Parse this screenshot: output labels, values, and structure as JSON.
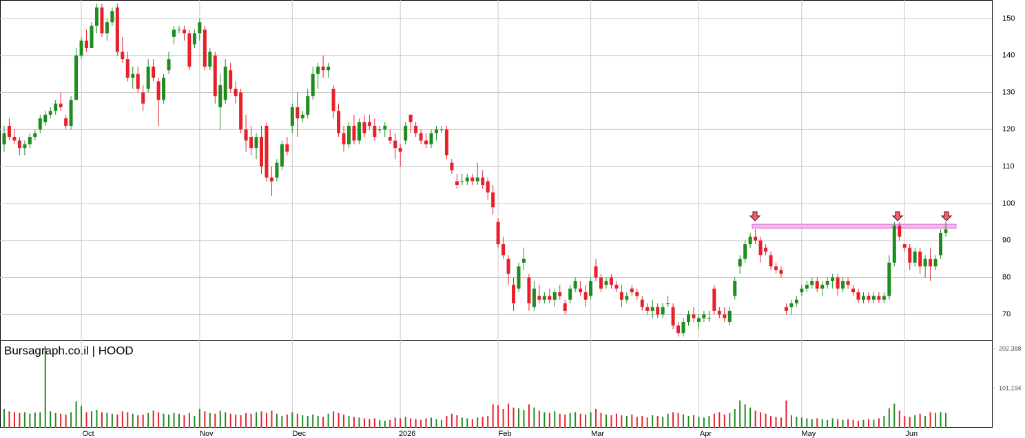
{
  "chart_data": {
    "type": "candlestick",
    "title": "Bursagraph.co.il | HOOD",
    "ylim": [
      63,
      155
    ],
    "yticks": [
      70,
      80,
      90,
      100,
      110,
      120,
      130,
      140,
      150
    ],
    "volume_ylim": [
      0,
      225000
    ],
    "volume_ticks": [
      {
        "value": 101194,
        "label": "101,194"
      },
      {
        "value": 202388,
        "label": "202,388"
      }
    ],
    "xticks": [
      {
        "value": 15,
        "label": "Oct"
      },
      {
        "value": 38,
        "label": "Nov"
      },
      {
        "value": 56,
        "label": "Dec"
      },
      {
        "value": 77,
        "label": "2026"
      },
      {
        "value": 96,
        "label": "Feb"
      },
      {
        "value": 114,
        "label": "Mar"
      },
      {
        "value": 135,
        "label": "Apr"
      },
      {
        "value": 155,
        "label": "May"
      },
      {
        "value": 175,
        "label": "Jun"
      }
    ],
    "grid": true,
    "up_color": "#1e8c1e",
    "down_color": "#e8202a",
    "resistance": {
      "low": 93.3,
      "high": 94.4,
      "color": "#f7b6f0"
    },
    "candles": [
      [
        116,
        121,
        114,
        119
      ],
      [
        121,
        123,
        117,
        118
      ],
      [
        118,
        120,
        116,
        117
      ],
      [
        117,
        118,
        113,
        115
      ],
      [
        115,
        117,
        113,
        116
      ],
      [
        116,
        119,
        115,
        118
      ],
      [
        118,
        120,
        117,
        119
      ],
      [
        120,
        124,
        119,
        123
      ],
      [
        122,
        125,
        121,
        124
      ],
      [
        124,
        126,
        123,
        125
      ],
      [
        125,
        128,
        124,
        127
      ],
      [
        127,
        130,
        125,
        126
      ],
      [
        123,
        124,
        120,
        121
      ],
      [
        121,
        129,
        120,
        128
      ],
      [
        128,
        142,
        128,
        140
      ],
      [
        140,
        145,
        139,
        144
      ],
      [
        144,
        147,
        141,
        142
      ],
      [
        142,
        149,
        142,
        148
      ],
      [
        148,
        154,
        146,
        153
      ],
      [
        153,
        154,
        145,
        146
      ],
      [
        146,
        150,
        144,
        149
      ],
      [
        149,
        153,
        148,
        152
      ],
      [
        153,
        154,
        140,
        141
      ],
      [
        141,
        145,
        138,
        139
      ],
      [
        139,
        141,
        133,
        134
      ],
      [
        134,
        137,
        131,
        135
      ],
      [
        135,
        137,
        130,
        131
      ],
      [
        130,
        132,
        125,
        127
      ],
      [
        131,
        139,
        130,
        137
      ],
      [
        137,
        139,
        133,
        134
      ],
      [
        133,
        134,
        121,
        128
      ],
      [
        128,
        135,
        127,
        134
      ],
      [
        136,
        141,
        135,
        139
      ],
      [
        145,
        148,
        143,
        147
      ],
      [
        147,
        148,
        146,
        147
      ],
      [
        147,
        148,
        144,
        146
      ],
      [
        146,
        147,
        136,
        137
      ],
      [
        143,
        147,
        142,
        146
      ],
      [
        146,
        150,
        144,
        149
      ],
      [
        147,
        148,
        136,
        137
      ],
      [
        137,
        142,
        136,
        141
      ],
      [
        140,
        141,
        127,
        129
      ],
      [
        126,
        135,
        120,
        132
      ],
      [
        128,
        139,
        127,
        137
      ],
      [
        136,
        138,
        130,
        131
      ],
      [
        131,
        133,
        127,
        129
      ],
      [
        130,
        131,
        119,
        120
      ],
      [
        120,
        124,
        114,
        117
      ],
      [
        118,
        121,
        113,
        115
      ],
      [
        115,
        119,
        112,
        118
      ],
      [
        118,
        121,
        108,
        110
      ],
      [
        121,
        122,
        106,
        107
      ],
      [
        107,
        110,
        102,
        106
      ],
      [
        107,
        112,
        106,
        111
      ],
      [
        110,
        117,
        109,
        116
      ],
      [
        116,
        118,
        113,
        114
      ],
      [
        121,
        127,
        119,
        126
      ],
      [
        126,
        130,
        118,
        123
      ],
      [
        123,
        125,
        122,
        124
      ],
      [
        124,
        131,
        123,
        129
      ],
      [
        129,
        137,
        128,
        135
      ],
      [
        135,
        138,
        131,
        137
      ],
      [
        137,
        140,
        134,
        136
      ],
      [
        136,
        138,
        134,
        137
      ],
      [
        131,
        132,
        123,
        125
      ],
      [
        125,
        127,
        118,
        119
      ],
      [
        119,
        121,
        114,
        116
      ],
      [
        116,
        122,
        115,
        121
      ],
      [
        121,
        124,
        116,
        117
      ],
      [
        117,
        123,
        116,
        122
      ],
      [
        122,
        124,
        118,
        119
      ],
      [
        122,
        124,
        120,
        121
      ],
      [
        121,
        123,
        117,
        118
      ],
      [
        120,
        121,
        119,
        120
      ],
      [
        120,
        122,
        118,
        121
      ],
      [
        118,
        120,
        116,
        117
      ],
      [
        117,
        119,
        112,
        115
      ],
      [
        115,
        116,
        110,
        114
      ],
      [
        117,
        122,
        116,
        121
      ],
      [
        124,
        124,
        119,
        122
      ],
      [
        121,
        122,
        118,
        119
      ],
      [
        119,
        120,
        116,
        117
      ],
      [
        117,
        119,
        115,
        116
      ],
      [
        116,
        120,
        115,
        119
      ],
      [
        119,
        121,
        117,
        120
      ],
      [
        120,
        121,
        119,
        120
      ],
      [
        120,
        121,
        112,
        113
      ],
      [
        111,
        112,
        108,
        109
      ],
      [
        106,
        108,
        104,
        105
      ],
      [
        106,
        108,
        105,
        106
      ],
      [
        106,
        108,
        105,
        107
      ],
      [
        107,
        108,
        105,
        106
      ],
      [
        106,
        111,
        105,
        107
      ],
      [
        107,
        109,
        104,
        105
      ],
      [
        106,
        107,
        101,
        103
      ],
      [
        103,
        105,
        97,
        99
      ],
      [
        95,
        96,
        88,
        89
      ],
      [
        89,
        91,
        85,
        86
      ],
      [
        85,
        86,
        78,
        81
      ],
      [
        78,
        80,
        71,
        73
      ],
      [
        77,
        84,
        76,
        83
      ],
      [
        84,
        88,
        82,
        85
      ],
      [
        80,
        81,
        71,
        73
      ],
      [
        72,
        79,
        71,
        77
      ],
      [
        75,
        78,
        73,
        74
      ],
      [
        74,
        76,
        73,
        75
      ],
      [
        75,
        77,
        73,
        74
      ],
      [
        74,
        77,
        72,
        76
      ],
      [
        76,
        78,
        74,
        75
      ],
      [
        73,
        74,
        70,
        71
      ],
      [
        74,
        78,
        73,
        77
      ],
      [
        77,
        80,
        76,
        79
      ],
      [
        77,
        79,
        75,
        76
      ],
      [
        76,
        78,
        72,
        74
      ],
      [
        75,
        80,
        74,
        79
      ],
      [
        83,
        85,
        79,
        80
      ],
      [
        80,
        81,
        76,
        77
      ],
      [
        78,
        80,
        77,
        79
      ],
      [
        80,
        81,
        77,
        78
      ],
      [
        78,
        79,
        76,
        77
      ],
      [
        76,
        78,
        72,
        74
      ],
      [
        74,
        76,
        73,
        75
      ],
      [
        77,
        78,
        75,
        76
      ],
      [
        76,
        77,
        74,
        75
      ],
      [
        74,
        75,
        71,
        72
      ],
      [
        72,
        73,
        70,
        71
      ],
      [
        71,
        74,
        69,
        72
      ],
      [
        72,
        73,
        69,
        70
      ],
      [
        70,
        73,
        69,
        72
      ],
      [
        73,
        75,
        72,
        73
      ],
      [
        72,
        73,
        66,
        67
      ],
      [
        67,
        68,
        64,
        65
      ],
      [
        65,
        69,
        64,
        68
      ],
      [
        68,
        71,
        67,
        70
      ],
      [
        70,
        72,
        68,
        69
      ],
      [
        68,
        70,
        66,
        69
      ],
      [
        69,
        71,
        68,
        70
      ],
      [
        69,
        71,
        68,
        69
      ],
      [
        77,
        78,
        70,
        71
      ],
      [
        71,
        72,
        69,
        70
      ],
      [
        70,
        72,
        68,
        69
      ],
      [
        68,
        72,
        67,
        71
      ],
      [
        75,
        80,
        74,
        79
      ],
      [
        83,
        86,
        81,
        85
      ],
      [
        85,
        90,
        84,
        89
      ],
      [
        89,
        92,
        88,
        91
      ],
      [
        91,
        93,
        89,
        90
      ],
      [
        90,
        91,
        84,
        86
      ],
      [
        88,
        89,
        86,
        87
      ],
      [
        86,
        87,
        82,
        83
      ],
      [
        83,
        84,
        81,
        82
      ],
      [
        82,
        83,
        80,
        81
      ],
      [
        72,
        73,
        70,
        71
      ],
      [
        72,
        74,
        70,
        73
      ],
      [
        73,
        75,
        72,
        74
      ],
      [
        76,
        78,
        75,
        77
      ],
      [
        77,
        79,
        76,
        78
      ],
      [
        78,
        80,
        77,
        79
      ],
      [
        79,
        80,
        76,
        77
      ],
      [
        77,
        79,
        75,
        78
      ],
      [
        78,
        80,
        77,
        79
      ],
      [
        79,
        81,
        77,
        80
      ],
      [
        80,
        81,
        75,
        77
      ],
      [
        77,
        80,
        76,
        79
      ],
      [
        79,
        80,
        77,
        78
      ],
      [
        77,
        78,
        75,
        76
      ],
      [
        76,
        77,
        73,
        74
      ],
      [
        74,
        76,
        73,
        75
      ],
      [
        75,
        76,
        73,
        74
      ],
      [
        74,
        76,
        73,
        75
      ],
      [
        75,
        76,
        73,
        74
      ],
      [
        74,
        76,
        73,
        75
      ],
      [
        75,
        86,
        74,
        84
      ],
      [
        84,
        95,
        83,
        94
      ],
      [
        94,
        95,
        90,
        91
      ],
      [
        89,
        89,
        87,
        88
      ],
      [
        88,
        89,
        82,
        84
      ],
      [
        84,
        88,
        83,
        87
      ],
      [
        87,
        88,
        81,
        83
      ],
      [
        83,
        86,
        80,
        85
      ],
      [
        85,
        88,
        79,
        83
      ],
      [
        83,
        86,
        82,
        85
      ],
      [
        86,
        93,
        85,
        92
      ],
      [
        92,
        95,
        91,
        93
      ]
    ],
    "volume": [
      48000,
      42000,
      40000,
      38000,
      40000,
      36000,
      39000,
      40000,
      210000,
      42000,
      38000,
      36000,
      34000,
      40000,
      68000,
      56000,
      40000,
      42000,
      46000,
      40000,
      38000,
      36000,
      34000,
      42000,
      40000,
      36000,
      32000,
      34000,
      38000,
      44000,
      40000,
      36000,
      34000,
      38000,
      36000,
      32000,
      38000,
      30000,
      48000,
      42000,
      38000,
      36000,
      44000,
      40000,
      36000,
      34000,
      32000,
      38000,
      36000,
      40000,
      42000,
      38000,
      44000,
      36000,
      30000,
      34000,
      40000,
      36000,
      32000,
      30000,
      34000,
      30000,
      28000,
      36000,
      42000,
      38000,
      34000,
      30000,
      28000,
      26000,
      24000,
      22000,
      24000,
      20000,
      18000,
      20000,
      26000,
      24000,
      28000,
      24000,
      22000,
      20000,
      24000,
      26000,
      22000,
      20000,
      30000,
      36000,
      32000,
      26000,
      24000,
      22000,
      26000,
      28000,
      30000,
      60000,
      58000,
      48000,
      62000,
      52000,
      50000,
      46000,
      60000,
      52000,
      44000,
      40000,
      38000,
      42000,
      36000,
      34000,
      38000,
      40000,
      36000,
      34000,
      40000,
      48000,
      38000,
      34000,
      32000,
      36000,
      32000,
      30000,
      34000,
      28000,
      30000,
      26000,
      32000,
      30000,
      28000,
      36000,
      40000,
      38000,
      34000,
      30000,
      32000,
      28000,
      26000,
      30000,
      36000,
      40000,
      34000,
      38000,
      48000,
      70000,
      60000,
      52000,
      44000,
      40000,
      36000,
      30000,
      28000,
      26000,
      70000,
      32000,
      28000,
      26000,
      24000,
      22000,
      24000,
      22000,
      20000,
      24000,
      22000,
      20000,
      22000,
      20000,
      18000,
      20000,
      22000,
      20000,
      24000,
      30000,
      50000,
      62000,
      44000,
      30000,
      28000,
      32000,
      36000,
      30000,
      40000,
      38000,
      40000,
      38000
    ]
  }
}
